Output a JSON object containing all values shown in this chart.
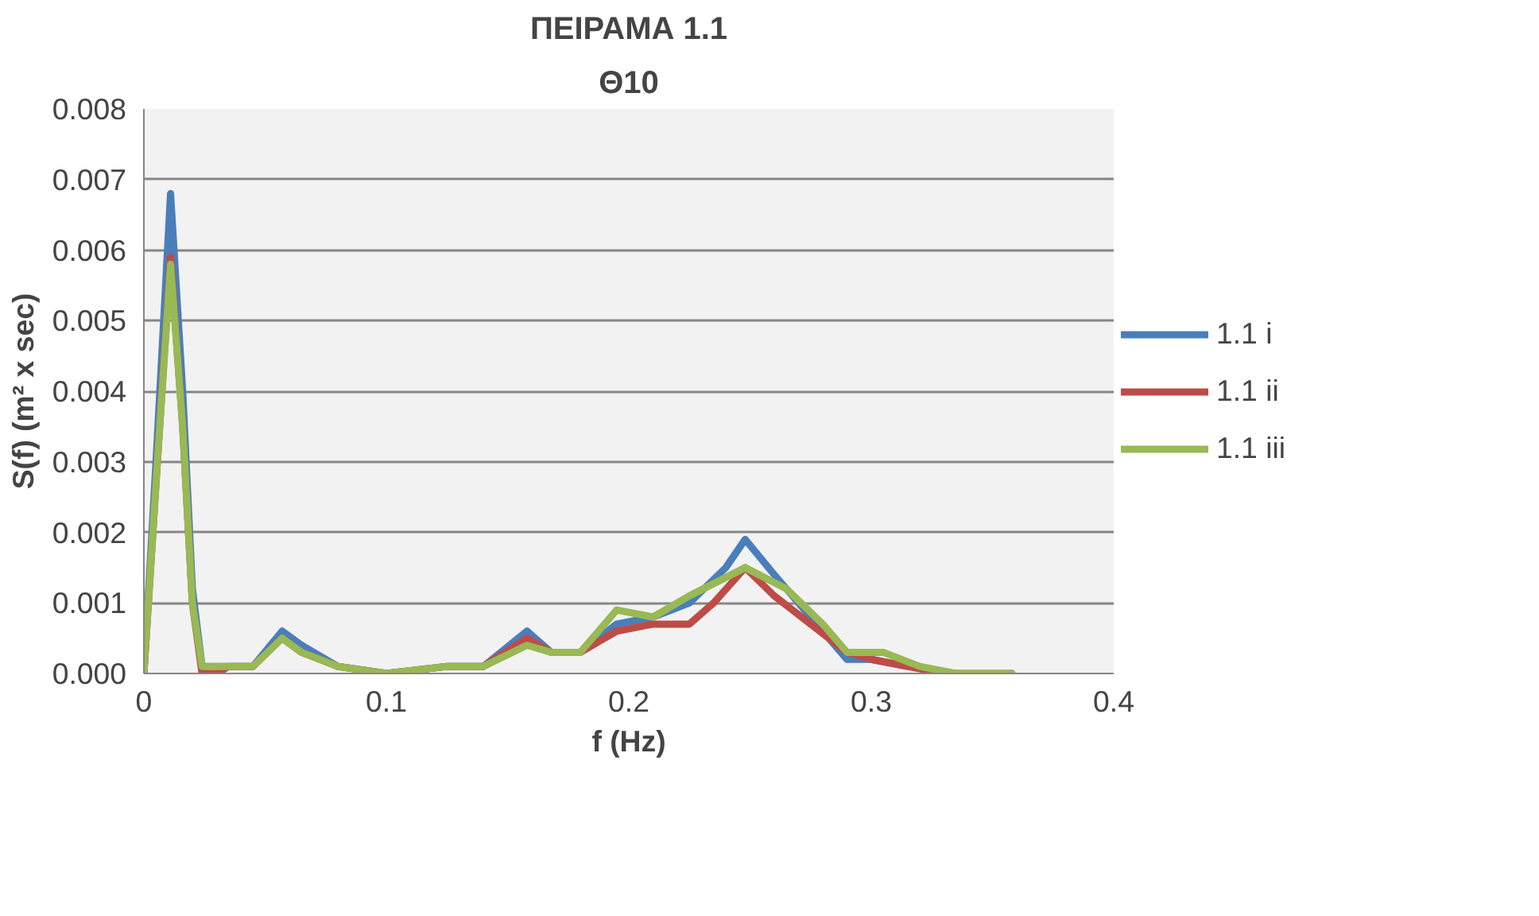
{
  "chart_data": {
    "type": "line",
    "title": "ΠΕΙΡΑΜΑ 1.1",
    "subtitle": "Θ10",
    "xlabel": "f (Hz)",
    "ylabel": "S(f) (m² x sec)",
    "xlim": [
      0,
      0.4
    ],
    "xticks": [
      0,
      0.1,
      0.2,
      0.3,
      0.4
    ],
    "ylim": [
      0,
      0.008
    ],
    "yticks": [
      {
        "value": 0,
        "label": "0.000"
      },
      {
        "value": 0.001,
        "label": "0.001"
      },
      {
        "value": 0.002,
        "label": "0.002"
      },
      {
        "value": 0.003,
        "label": "0.003"
      },
      {
        "value": 0.004,
        "label": "0.004"
      },
      {
        "value": 0.005,
        "label": "0.005"
      },
      {
        "value": 0.006,
        "label": "0.006"
      },
      {
        "value": 0.007,
        "label": "0.007"
      },
      {
        "value": 0.008,
        "label": "0.008"
      }
    ],
    "grid": "y",
    "legend": "right",
    "marker": "none",
    "line_style": "solid",
    "series": [
      {
        "name": "1.1 i",
        "color": "#4a7ebb",
        "x": [
          0,
          0.005,
          0.011,
          0.016,
          0.02,
          0.024,
          0.03,
          0.035,
          0.045,
          0.057,
          0.065,
          0.08,
          0.1,
          0.125,
          0.14,
          0.158,
          0.168,
          0.18,
          0.195,
          0.21,
          0.225,
          0.24,
          0.248,
          0.26,
          0.275,
          0.29,
          0.3,
          0.315
        ],
        "values": [
          0,
          0.003,
          0.0068,
          0.004,
          0.0012,
          0.0001,
          0.0001,
          0.0001,
          0.0001,
          0.0006,
          0.0004,
          0.0001,
          0,
          0.0001,
          0.0001,
          0.0006,
          0.0003,
          0.0003,
          0.0007,
          0.0008,
          0.001,
          0.0015,
          0.0019,
          0.0014,
          0.0008,
          0.0002,
          0.0002,
          0.0001
        ]
      },
      {
        "name": "1.1 ii",
        "color": "#be4b48",
        "x": [
          0,
          0.005,
          0.011,
          0.016,
          0.02,
          0.024,
          0.03,
          0.035,
          0.045,
          0.057,
          0.065,
          0.08,
          0.1,
          0.125,
          0.14,
          0.158,
          0.168,
          0.18,
          0.195,
          0.21,
          0.225,
          0.235,
          0.248,
          0.26,
          0.275,
          0.29,
          0.3,
          0.315,
          0.33,
          0.358
        ],
        "values": [
          0,
          0.0027,
          0.0059,
          0.0035,
          0.001,
          0,
          0,
          0.0001,
          0.0001,
          0.0005,
          0.0003,
          0.0001,
          0,
          0.0001,
          0.0001,
          0.0005,
          0.0003,
          0.0003,
          0.0006,
          0.0007,
          0.0007,
          0.001,
          0.0015,
          0.0011,
          0.0007,
          0.0003,
          0.0002,
          0.0001,
          0,
          0
        ]
      },
      {
        "name": "1.1 iii",
        "color": "#98b954",
        "x": [
          0,
          0.005,
          0.011,
          0.016,
          0.02,
          0.024,
          0.03,
          0.035,
          0.045,
          0.057,
          0.065,
          0.08,
          0.1,
          0.125,
          0.14,
          0.158,
          0.168,
          0.18,
          0.195,
          0.21,
          0.225,
          0.248,
          0.265,
          0.28,
          0.29,
          0.305,
          0.32,
          0.335,
          0.358
        ],
        "values": [
          0,
          0.0027,
          0.0058,
          0.0035,
          0.001,
          0.0001,
          0.0001,
          0.0001,
          0.0001,
          0.0005,
          0.0003,
          0.0001,
          0,
          0.0001,
          0.0001,
          0.0004,
          0.0003,
          0.0003,
          0.0009,
          0.0008,
          0.0011,
          0.0015,
          0.0012,
          0.0007,
          0.0003,
          0.0003,
          0.0001,
          0,
          0
        ]
      }
    ]
  }
}
